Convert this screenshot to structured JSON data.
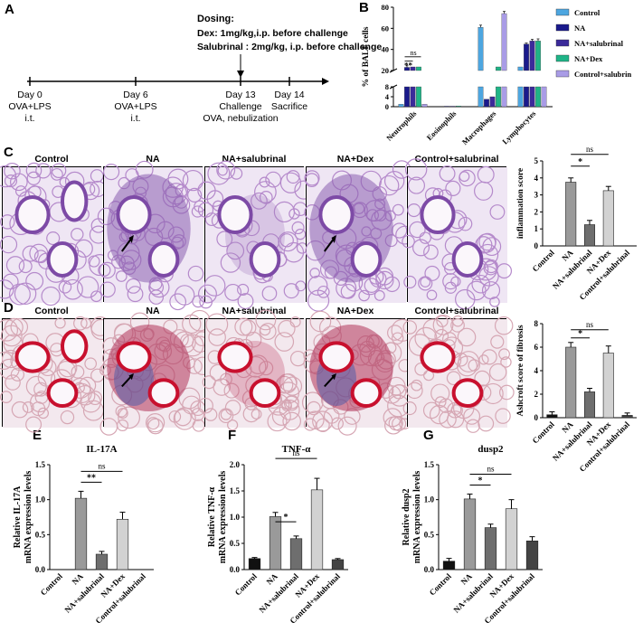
{
  "panels": {
    "A": "A",
    "B": "B",
    "C": "C",
    "D": "D",
    "E": "E",
    "F": "F",
    "G": "G"
  },
  "timeline": {
    "dosing_title": "Dosing:",
    "dosing_dex": "Dex: 1mg/kg,i.p. before challenge",
    "dosing_sal": "Salubrinal : 2mg/kg, i.p. before challenge",
    "events": [
      {
        "day": "Day 0",
        "l1": "OVA+LPS",
        "l2": "i.t."
      },
      {
        "day": "Day 6",
        "l1": "OVA+LPS",
        "l2": "i.t."
      },
      {
        "day": "Day 13",
        "l1": "Challenge",
        "l2": "OVA, nebulization"
      },
      {
        "day": "Day 14",
        "l1": "Sacrifice",
        "l2": ""
      }
    ]
  },
  "histology": {
    "labels": [
      "Control",
      "NA",
      "NA+salubrinal",
      "NA+Dex",
      "Control+salubrinal"
    ]
  },
  "colors": {
    "control": "#4da6e0",
    "na": "#1a1a8c",
    "na_sal": "#3b2a9a",
    "na_dex": "#1fb487",
    "control_sal": "#a99ce6",
    "he_bg": "#efe6f4",
    "he_stain": "#7d4aa6",
    "mt_bg": "#f3e8ee",
    "mt_red": "#c8102e",
    "mt_blue": "#4a5aa8"
  },
  "chart_data": [
    {
      "id": "B",
      "type": "bar",
      "ylabel": "% of BALF cells",
      "categories": [
        "Neutrophils",
        "Eosinophils",
        "Macrophages",
        "Lymphocytes"
      ],
      "series": [
        {
          "name": "Control",
          "values": [
            1,
            0,
            61,
            11
          ]
        },
        {
          "name": "NA",
          "values": [
            23,
            0.2,
            3,
            45
          ]
        },
        {
          "name": "NA+salubrinal",
          "values": [
            12,
            0.2,
            4,
            48
          ]
        },
        {
          "name": "NA+Dex",
          "values": [
            15,
            0.3,
            11,
            48
          ]
        },
        {
          "name": "Control+salubrin",
          "values": [
            1,
            0,
            74,
            8
          ]
        }
      ],
      "errors": [
        [
          0.3,
          0,
          2,
          1
        ],
        [
          1.5,
          0,
          0.5,
          1
        ],
        [
          1,
          0,
          1,
          1.5
        ],
        [
          2,
          0,
          2,
          2
        ],
        [
          0.3,
          0,
          2,
          0.5
        ]
      ],
      "yticks": [
        "0",
        "4",
        "8",
        "20",
        "40",
        "60",
        "80"
      ],
      "annotations": [
        "ns",
        "**"
      ]
    },
    {
      "id": "C",
      "type": "bar",
      "ylabel": "inflammation score",
      "categories": [
        "Control",
        "NA",
        "NA+salubrinal",
        "NA+Dex",
        "Control+salubrinal"
      ],
      "values": [
        0,
        3.75,
        1.25,
        3.25,
        0
      ],
      "errors": [
        0,
        0.25,
        0.25,
        0.25,
        0
      ],
      "ylim": [
        0,
        5
      ],
      "yticks": [
        "0",
        "1",
        "2",
        "3",
        "4",
        "5"
      ],
      "annotations": [
        "ns",
        "*"
      ]
    },
    {
      "id": "D",
      "type": "bar",
      "ylabel": "Ashcroft score of fibrosis",
      "categories": [
        "Control",
        "NA",
        "NA+salubrinal",
        "NA+Dex",
        "Control+salubrinal"
      ],
      "values": [
        0.25,
        6,
        2.2,
        5.5,
        0.2
      ],
      "errors": [
        0.25,
        0.4,
        0.3,
        0.6,
        0.2
      ],
      "ylim": [
        0,
        8
      ],
      "yticks": [
        "0",
        "2",
        "4",
        "6",
        "8"
      ],
      "annotations": [
        "ns",
        "*"
      ]
    },
    {
      "id": "E",
      "type": "bar",
      "title": "IL-17A",
      "ylabel": "Relative IL-17A mRNA expression levels",
      "categories": [
        "Control",
        "NA",
        "NA+salubrinal",
        "NA+Dex",
        "Control+salubrinal"
      ],
      "values": [
        0,
        1.02,
        0.22,
        0.72,
        0
      ],
      "errors": [
        0,
        0.1,
        0.04,
        0.1,
        0
      ],
      "ylim": [
        0,
        1.5
      ],
      "yticks": [
        "0.0",
        "0.5",
        "1.0",
        "1.5"
      ],
      "annotations": [
        "ns",
        "**"
      ]
    },
    {
      "id": "F",
      "type": "bar",
      "title": "TNF-α",
      "ylabel": "Relative TNF-α mRNA expression levels",
      "categories": [
        "Control",
        "NA",
        "NA+salubrinal",
        "NA+Dex",
        "Control+salubrinal"
      ],
      "values": [
        0.21,
        1.01,
        0.59,
        1.52,
        0.19
      ],
      "errors": [
        0.02,
        0.08,
        0.05,
        0.22,
        0.02
      ],
      "ylim": [
        0,
        2
      ],
      "yticks": [
        "0.0",
        "0.5",
        "1.0",
        "1.5",
        "2.0"
      ],
      "annotations": [
        "ns",
        "*"
      ]
    },
    {
      "id": "G",
      "type": "bar",
      "title": "dusp2",
      "ylabel": "Relative dusp2 mRNA expression levels",
      "categories": [
        "Control",
        "NA",
        "NA+salubrinal",
        "NA+Dex",
        "Control+salubrinal"
      ],
      "values": [
        0.12,
        1.01,
        0.6,
        0.87,
        0.41
      ],
      "errors": [
        0.04,
        0.07,
        0.05,
        0.13,
        0.06
      ],
      "ylim": [
        0,
        1.5
      ],
      "yticks": [
        "0.0",
        "0.5",
        "1.0",
        "1.5"
      ],
      "annotations": [
        "ns",
        "*"
      ]
    }
  ]
}
